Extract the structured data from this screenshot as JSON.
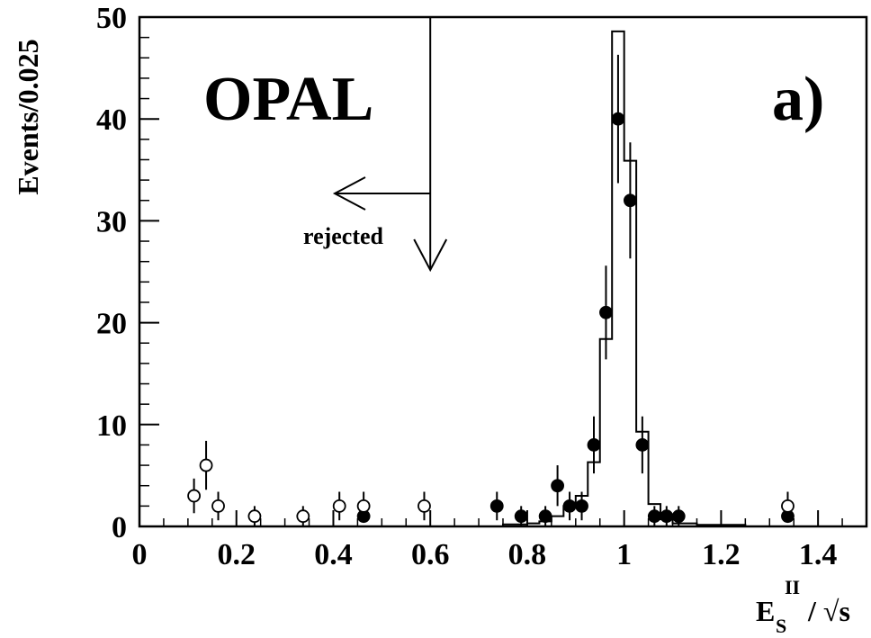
{
  "chart_data": {
    "type": "scatter",
    "xlim": [
      0,
      1.5
    ],
    "ylim": [
      0,
      50
    ],
    "x_ticks": [
      0,
      0.2,
      0.4,
      0.6,
      0.8,
      1,
      1.2,
      1.4
    ],
    "x_tick_labels": [
      "0",
      "0.2",
      "0.4",
      "0.6",
      "0.8",
      "1",
      "1.2",
      "1.4"
    ],
    "y_ticks": [
      0,
      10,
      20,
      30,
      40,
      50
    ],
    "y_tick_labels": [
      "0",
      "10",
      "20",
      "30",
      "40",
      "50"
    ],
    "ylabel": "Events/0.025",
    "xlabel": {
      "base": "E",
      "sub": "S",
      "sup": "II",
      "rest": "/ √s"
    },
    "experiment_label": "OPAL",
    "panel_label": "a)",
    "cut": {
      "x": 0.6,
      "label": "rejected"
    },
    "series": [
      {
        "style": "filled-circle",
        "points": [
          {
            "x": 0.4625,
            "y": 1,
            "err": 0
          },
          {
            "x": 0.7375,
            "y": 2,
            "err": 1.4
          },
          {
            "x": 0.7875,
            "y": 1,
            "err": 1.0
          },
          {
            "x": 0.8375,
            "y": 1,
            "err": 1.0
          },
          {
            "x": 0.8625,
            "y": 4,
            "err": 2.0
          },
          {
            "x": 0.8875,
            "y": 2,
            "err": 1.4
          },
          {
            "x": 0.9125,
            "y": 2,
            "err": 1.4
          },
          {
            "x": 0.9375,
            "y": 8,
            "err": 2.8
          },
          {
            "x": 0.9625,
            "y": 21,
            "err": 4.6
          },
          {
            "x": 0.9875,
            "y": 40,
            "err": 6.3
          },
          {
            "x": 1.0125,
            "y": 32,
            "err": 5.7
          },
          {
            "x": 1.0375,
            "y": 8,
            "err": 2.8
          },
          {
            "x": 1.0625,
            "y": 1,
            "err": 1.0
          },
          {
            "x": 1.0875,
            "y": 1,
            "err": 1.0
          },
          {
            "x": 1.1125,
            "y": 1,
            "err": 1.0
          },
          {
            "x": 1.3375,
            "y": 1,
            "err": 0
          }
        ]
      },
      {
        "style": "open-circle",
        "points": [
          {
            "x": 0.1125,
            "y": 3,
            "err": 1.7
          },
          {
            "x": 0.1375,
            "y": 6,
            "err": 2.4
          },
          {
            "x": 0.1625,
            "y": 2,
            "err": 1.4
          },
          {
            "x": 0.2375,
            "y": 1,
            "err": 1.0
          },
          {
            "x": 0.3375,
            "y": 1,
            "err": 1.0
          },
          {
            "x": 0.4125,
            "y": 2,
            "err": 1.4
          },
          {
            "x": 0.4625,
            "y": 2,
            "err": 1.4
          },
          {
            "x": 0.5875,
            "y": 2,
            "err": 1.4
          },
          {
            "x": 1.3375,
            "y": 2,
            "err": 1.4
          }
        ]
      }
    ],
    "histogram": {
      "style": "step",
      "bins": [
        {
          "x0": 0.75,
          "x1": 0.8,
          "y": 0.2
        },
        {
          "x0": 0.8,
          "x1": 0.825,
          "y": 0.3
        },
        {
          "x0": 0.825,
          "x1": 0.85,
          "y": 0.5
        },
        {
          "x0": 0.85,
          "x1": 0.875,
          "y": 1.0
        },
        {
          "x0": 0.875,
          "x1": 0.9,
          "y": 2.0
        },
        {
          "x0": 0.9,
          "x1": 0.925,
          "y": 3.0
        },
        {
          "x0": 0.925,
          "x1": 0.95,
          "y": 6.3
        },
        {
          "x0": 0.95,
          "x1": 0.975,
          "y": 18.4
        },
        {
          "x0": 0.975,
          "x1": 1.0,
          "y": 48.6
        },
        {
          "x0": 1.0,
          "x1": 1.025,
          "y": 35.9
        },
        {
          "x0": 1.025,
          "x1": 1.05,
          "y": 9.3
        },
        {
          "x0": 1.05,
          "x1": 1.075,
          "y": 2.2
        },
        {
          "x0": 1.075,
          "x1": 1.1,
          "y": 0.7
        },
        {
          "x0": 1.1,
          "x1": 1.15,
          "y": 0.3
        },
        {
          "x0": 1.15,
          "x1": 1.25,
          "y": 0.15
        }
      ]
    }
  }
}
